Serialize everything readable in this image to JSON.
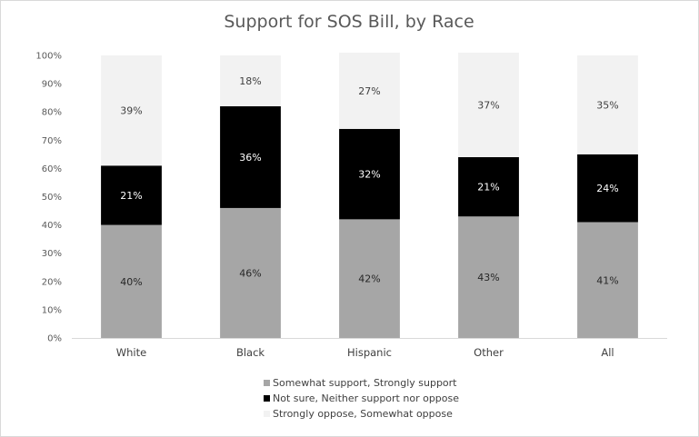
{
  "chart_data": {
    "type": "bar",
    "stacked": true,
    "title": "Support for SOS Bill,  by Race",
    "categories": [
      "White",
      "Black",
      "Hispanic",
      "Other",
      "All"
    ],
    "series": [
      {
        "name": "Somewhat support, Strongly support",
        "values": [
          40,
          46,
          42,
          43,
          41
        ],
        "labels": [
          "40%",
          "46%",
          "42%",
          "43%",
          "41%"
        ],
        "color": "#a6a6a6",
        "label_color": "#262626"
      },
      {
        "name": "Not sure, Neither support nor oppose",
        "values": [
          21,
          36,
          32,
          21,
          24
        ],
        "labels": [
          "21%",
          "36%",
          "32%",
          "21%",
          "24%"
        ],
        "color": "#000000",
        "label_color": "#ffffff"
      },
      {
        "name": "Strongly oppose, Somewhat oppose",
        "values": [
          39,
          18,
          27,
          37,
          35
        ],
        "labels": [
          "39%",
          "18%",
          "27%",
          "37%",
          "35%"
        ],
        "color": "#f2f2f2",
        "label_color": "#404040"
      }
    ],
    "ylim": [
      0,
      100
    ],
    "yticks": [
      "0%",
      "10%",
      "20%",
      "30%",
      "40%",
      "50%",
      "60%",
      "70%",
      "80%",
      "90%",
      "100%"
    ],
    "grid": false,
    "legend_position": "bottom"
  }
}
